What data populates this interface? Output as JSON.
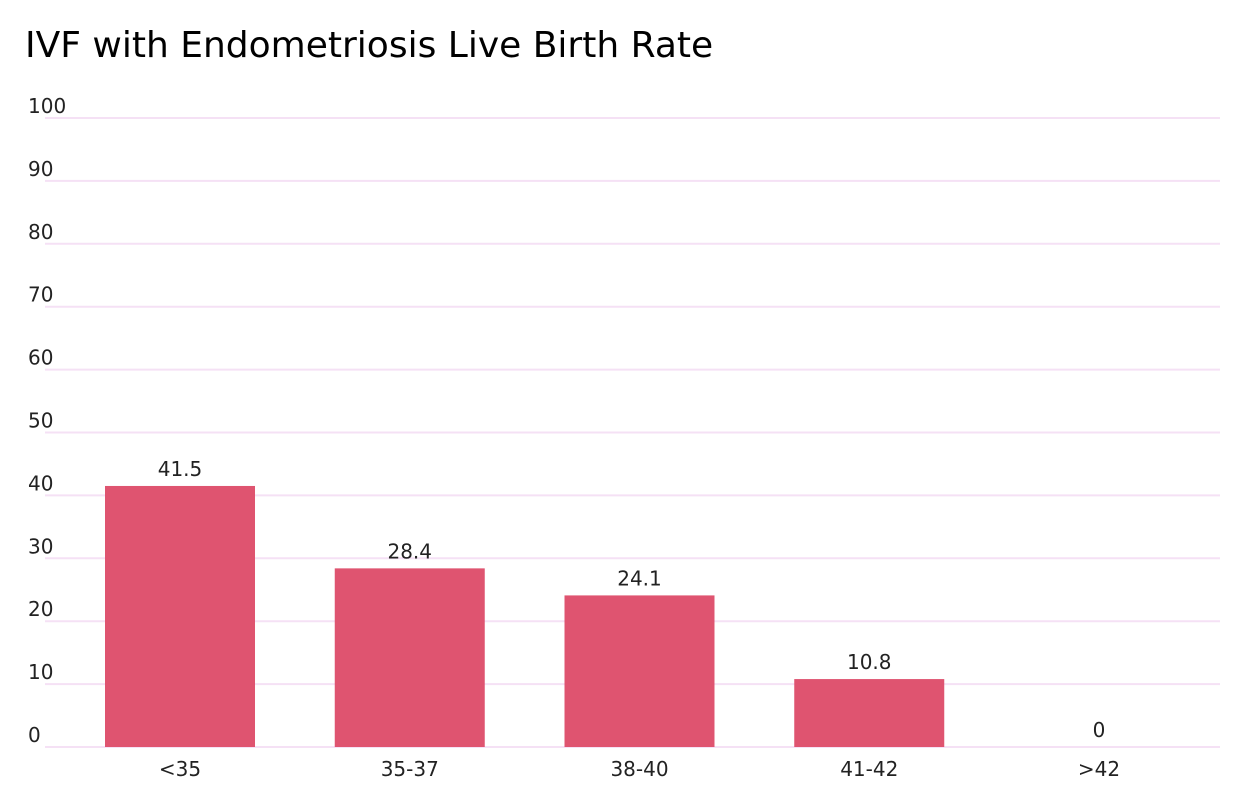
{
  "chart_data": {
    "type": "bar",
    "title": "IVF with Endometriosis Live Birth Rate",
    "xlabel": "",
    "ylabel": "",
    "categories": [
      "<35",
      "35-37",
      "38-40",
      "41-42",
      ">42"
    ],
    "values": [
      41.5,
      28.4,
      24.1,
      10.8,
      0
    ],
    "data_labels": [
      "41.5",
      "28.4",
      "24.1",
      "10.8",
      "0"
    ],
    "ylim": [
      0,
      100
    ],
    "yticks": [
      "0",
      "10",
      "20",
      "30",
      "40",
      "50",
      "60",
      "70",
      "80",
      "90",
      "100"
    ],
    "grid": true,
    "legend": "none",
    "bar_color": "#df5470",
    "grid_color": "#f5e1f5"
  }
}
